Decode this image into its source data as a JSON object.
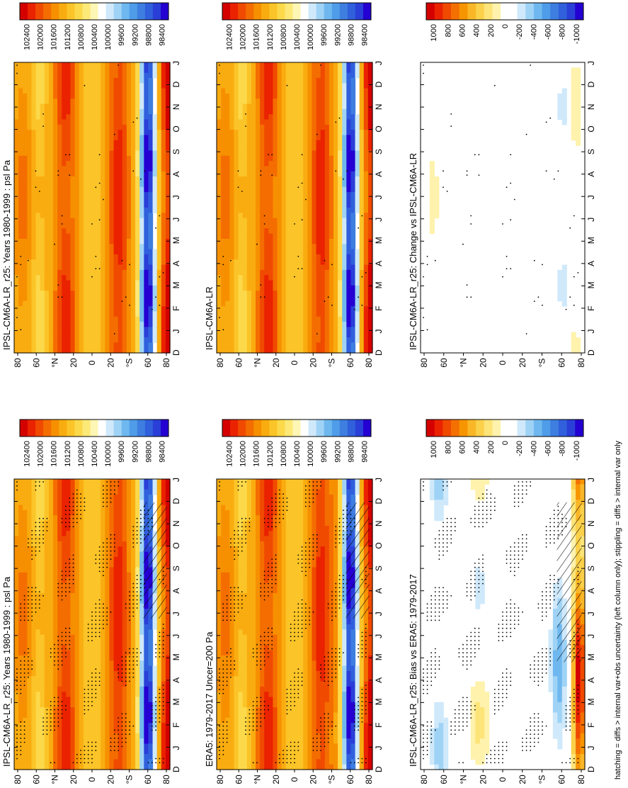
{
  "footer_note": "hatching = diffs > internal var+obs uncertainty (left column only); stippling = diffs > internal var only",
  "colors": {
    "abs_scale": [
      "#d40000",
      "#ea2200",
      "#f04a00",
      "#f46d00",
      "#f79000",
      "#f9ac10",
      "#fbc428",
      "#fcd94a",
      "#fde978",
      "#fef6b4",
      "#ffffff",
      "#cfe9fb",
      "#9fd3f6",
      "#6fb8ef",
      "#4f9ce8",
      "#3e7ee0",
      "#3160dc",
      "#2a3fd8",
      "#2400d2"
    ],
    "diff_scale": [
      "#d40000",
      "#ea2200",
      "#f04a00",
      "#f47000",
      "#f79500",
      "#f9b728",
      "#fbd04a",
      "#fde478",
      "#fef2ac",
      "#ffffff",
      "#ffffff",
      "#cfe9fb",
      "#9fd3f6",
      "#6fb8ef",
      "#4f9ce8",
      "#3e7ee0",
      "#3160dc",
      "#2a3fd8",
      "#2400d2"
    ]
  },
  "chart_data": [
    {
      "type": "heatmap",
      "title": "IPSL-CM6A-LR_r25: Years 1980-1999 : psl Pa",
      "x_months": [
        "D",
        "J",
        "F",
        "M",
        "A",
        "M",
        "J",
        "J",
        "A",
        "S",
        "O",
        "N",
        "D",
        "J"
      ],
      "y_lat_labels": [
        "80",
        "60",
        "°N",
        "20",
        "0",
        "20",
        "°S",
        "60",
        "80"
      ],
      "colorbar_ticks": [
        "102400",
        "102000",
        "101600",
        "101200",
        "100800",
        "100400",
        "100000",
        "99600",
        "99200",
        "98800",
        "98400"
      ],
      "field": "climatology",
      "stippling": true,
      "hatching": true
    },
    {
      "type": "heatmap",
      "title": "IPSL-CM6A-LR_r25: Years 1980-1999 : psl Pa",
      "x_months": [
        "D",
        "J",
        "F",
        "M",
        "A",
        "M",
        "J",
        "J",
        "A",
        "S",
        "O",
        "N",
        "D",
        "J"
      ],
      "y_lat_labels": [
        "80",
        "60",
        "°N",
        "20",
        "0",
        "20",
        "°S",
        "60",
        "80"
      ],
      "colorbar_ticks": [
        "102400",
        "102000",
        "101600",
        "101200",
        "100800",
        "100400",
        "100000",
        "99600",
        "99200",
        "98800",
        "98400"
      ],
      "field": "climatology",
      "stippling": true,
      "hatching": false
    },
    {
      "type": "heatmap",
      "title": "ERA5: 1979-2017 Uncer=200 Pa",
      "x_months": [
        "D",
        "J",
        "F",
        "M",
        "A",
        "M",
        "J",
        "J",
        "A",
        "S",
        "O",
        "N",
        "D",
        "J"
      ],
      "y_lat_labels": [
        "80",
        "60",
        "°N",
        "20",
        "0",
        "20",
        "°S",
        "60",
        "80"
      ],
      "colorbar_ticks": [
        "102400",
        "102000",
        "101600",
        "101200",
        "100800",
        "100400",
        "100000",
        "99600",
        "99200",
        "98800",
        "98400"
      ],
      "field": "climatology",
      "stippling": true,
      "hatching": true
    },
    {
      "type": "heatmap",
      "title": "IPSL-CM6A-LR",
      "x_months": [
        "D",
        "J",
        "F",
        "M",
        "A",
        "M",
        "J",
        "J",
        "A",
        "S",
        "O",
        "N",
        "D",
        "J"
      ],
      "y_lat_labels": [
        "80",
        "60",
        "°N",
        "20",
        "0",
        "20",
        "°S",
        "60",
        "80"
      ],
      "colorbar_ticks": [
        "102400",
        "102000",
        "101600",
        "101200",
        "100800",
        "100400",
        "100000",
        "99600",
        "99200",
        "98800",
        "98400"
      ],
      "field": "climatology",
      "stippling": true,
      "hatching": false
    },
    {
      "type": "heatmap",
      "title": "IPSL-CM6A-LR_r25: Bias vs ERA5: 1979-2017",
      "x_months": [
        "D",
        "J",
        "F",
        "M",
        "A",
        "M",
        "J",
        "J",
        "A",
        "S",
        "O",
        "N",
        "D",
        "J"
      ],
      "y_lat_labels": [
        "80",
        "60",
        "°N",
        "20",
        "0",
        "20",
        "°S",
        "60",
        "80"
      ],
      "colorbar_ticks": [
        "1000",
        "800",
        "600",
        "400",
        "200",
        "0",
        "-200",
        "-400",
        "-600",
        "-800",
        "-1000"
      ],
      "field": "bias",
      "stippling": true,
      "hatching": true
    },
    {
      "type": "heatmap",
      "title": "IPSL-CM6A-LR_r25: Change vs IPSL-CM6A-LR",
      "x_months": [
        "D",
        "J",
        "F",
        "M",
        "A",
        "M",
        "J",
        "J",
        "A",
        "S",
        "O",
        "N",
        "D",
        "J"
      ],
      "y_lat_labels": [
        "80",
        "60",
        "°N",
        "20",
        "0",
        "20",
        "°S",
        "60",
        "80"
      ],
      "colorbar_ticks": [
        "1000",
        "800",
        "600",
        "400",
        "200",
        "0",
        "-200",
        "-400",
        "-600",
        "-800",
        "-1000"
      ],
      "field": "change",
      "stippling": true,
      "hatching": false
    }
  ]
}
